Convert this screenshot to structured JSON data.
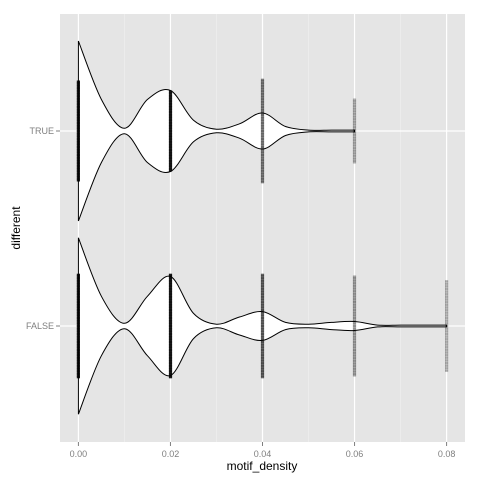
{
  "chart_data": {
    "type": "violin",
    "orientation": "horizontal",
    "title": "",
    "xlabel": "motif_density",
    "ylabel": "different",
    "xlim": [
      -0.004,
      0.084
    ],
    "x_ticks": [
      0.0,
      0.02,
      0.04,
      0.06,
      0.08
    ],
    "x_tick_labels": [
      "0.00",
      "0.02",
      "0.04",
      "0.06",
      "0.08"
    ],
    "categories": [
      "TRUE",
      "FALSE"
    ],
    "grid": true,
    "legend": "none",
    "background": "#e5e5e5",
    "gridline_color": "#ffffff",
    "violin_fill": "#ffffff",
    "violin_stroke": "#000000",
    "tick_label_color": "#7f7f7f",
    "series": [
      {
        "category": "TRUE",
        "density_x": [
          0.0,
          0.005,
          0.01,
          0.015,
          0.02,
          0.025,
          0.03,
          0.035,
          0.04,
          0.045,
          0.05,
          0.055,
          0.06
        ],
        "half_width": [
          1.0,
          0.35,
          0.03,
          0.35,
          0.45,
          0.12,
          0.02,
          0.08,
          0.2,
          0.05,
          0.01,
          0.01,
          0.01
        ],
        "points": [
          {
            "x": 0.0,
            "spread": 0.55,
            "opacity": 0.9
          },
          {
            "x": 0.02,
            "spread": 0.44,
            "opacity": 0.9
          },
          {
            "x": 0.04,
            "spread": 0.57,
            "opacity": 0.5
          },
          {
            "x": 0.06,
            "spread": 0.35,
            "opacity": 0.3
          }
        ]
      },
      {
        "category": "FALSE",
        "density_x": [
          0.0,
          0.005,
          0.01,
          0.015,
          0.02,
          0.025,
          0.03,
          0.035,
          0.04,
          0.045,
          0.05,
          0.055,
          0.06,
          0.065,
          0.07,
          0.075,
          0.08
        ],
        "half_width": [
          0.98,
          0.33,
          0.03,
          0.33,
          0.55,
          0.14,
          0.02,
          0.1,
          0.16,
          0.04,
          0.02,
          0.04,
          0.05,
          0.01,
          0.01,
          0.01,
          0.01
        ],
        "points": [
          {
            "x": 0.0,
            "spread": 0.57,
            "opacity": 0.9
          },
          {
            "x": 0.02,
            "spread": 0.57,
            "opacity": 0.9
          },
          {
            "x": 0.04,
            "spread": 0.57,
            "opacity": 0.6
          },
          {
            "x": 0.06,
            "spread": 0.55,
            "opacity": 0.35
          },
          {
            "x": 0.08,
            "spread": 0.5,
            "opacity": 0.25
          }
        ]
      }
    ]
  }
}
